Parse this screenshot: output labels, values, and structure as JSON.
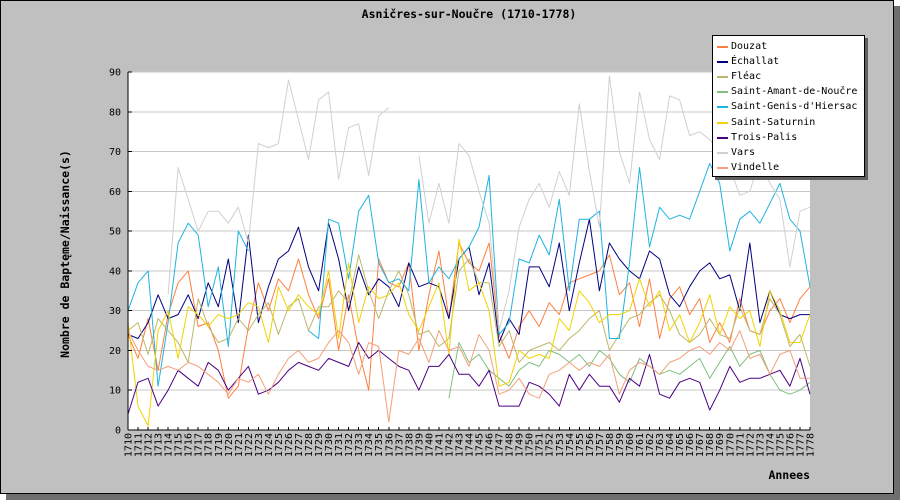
{
  "chart_data": {
    "type": "line",
    "title": "Asničres-sur-Noučre (1710-1778)",
    "xlabel": "Annees",
    "ylabel": "Nombre de Baptęme/Naissance(s)",
    "ylim": [
      0,
      90
    ],
    "yticks": [
      0,
      10,
      20,
      30,
      40,
      50,
      60,
      70,
      80,
      90
    ],
    "grid": "horizontal",
    "legend_position": "top-right",
    "x": [
      1710,
      1711,
      1712,
      1713,
      1714,
      1715,
      1716,
      1717,
      1718,
      1719,
      1720,
      1721,
      1722,
      1723,
      1724,
      1725,
      1726,
      1727,
      1728,
      1729,
      1730,
      1731,
      1732,
      1733,
      1734,
      1735,
      1736,
      1737,
      1738,
      1739,
      1740,
      1741,
      1742,
      1743,
      1744,
      1745,
      1746,
      1747,
      1748,
      1749,
      1750,
      1751,
      1752,
      1753,
      1754,
      1755,
      1756,
      1757,
      1758,
      1759,
      1760,
      1761,
      1762,
      1763,
      1764,
      1765,
      1766,
      1767,
      1768,
      1769,
      1770,
      1771,
      1772,
      1773,
      1774,
      1775,
      1776,
      1777,
      1778
    ],
    "series": [
      {
        "name": "Douzat",
        "color": "#ff7f3f",
        "values": [
          24,
          18,
          28,
          15,
          29,
          37,
          40,
          26,
          27,
          20,
          8,
          11,
          26,
          37,
          30,
          38,
          35,
          43,
          34,
          28,
          38,
          20,
          34,
          20,
          10,
          43,
          37,
          36,
          42,
          20,
          34,
          45,
          28,
          47,
          42,
          40,
          47,
          24,
          18,
          26,
          30,
          26,
          32,
          29,
          37,
          38,
          39,
          40,
          44,
          34,
          37,
          26,
          38,
          23,
          33,
          36,
          29,
          33,
          22,
          27,
          22,
          33,
          25,
          24,
          30,
          33,
          27,
          33,
          36
        ]
      },
      {
        "name": "Échallat",
        "color": "#000080",
        "values": [
          24,
          23,
          27,
          34,
          28,
          29,
          34,
          28,
          37,
          31,
          43,
          27,
          49,
          27,
          36,
          43,
          45,
          51,
          41,
          35,
          52,
          43,
          30,
          41,
          34,
          38,
          36,
          31,
          42,
          36,
          37,
          36,
          28,
          43,
          46,
          34,
          42,
          22,
          28,
          24,
          41,
          41,
          36,
          47,
          30,
          42,
          53,
          35,
          47,
          43,
          40,
          38,
          45,
          43,
          34,
          31,
          36,
          40,
          42,
          38,
          39,
          30,
          47,
          27,
          35,
          29,
          28,
          29,
          29
        ]
      },
      {
        "name": "Fléac",
        "color": "#bdb76b",
        "values": [
          25,
          27,
          19,
          28,
          25,
          22,
          17,
          33,
          26,
          22,
          23,
          28,
          25,
          29,
          32,
          24,
          31,
          33,
          25,
          31,
          31,
          35,
          32,
          44,
          35,
          28,
          35,
          40,
          34,
          24,
          25,
          21,
          23,
          40,
          43,
          37,
          37,
          21,
          25,
          17,
          20,
          21,
          22,
          20,
          23,
          25,
          28,
          30,
          20,
          24,
          28,
          29,
          32,
          34,
          30,
          24,
          22,
          24,
          28,
          24,
          23,
          31,
          25,
          24,
          33,
          29,
          21,
          24,
          16
        ]
      },
      {
        "name": "Saint-Amant-de-Noučre",
        "color": "#80c080",
        "values": [
          null,
          null,
          null,
          null,
          null,
          null,
          null,
          null,
          null,
          null,
          null,
          null,
          null,
          null,
          null,
          null,
          null,
          null,
          null,
          null,
          null,
          null,
          null,
          null,
          null,
          null,
          null,
          null,
          null,
          null,
          null,
          null,
          8,
          22,
          17,
          19,
          15,
          13,
          11,
          15,
          17,
          16,
          20,
          19,
          17,
          19,
          16,
          20,
          18,
          14,
          12,
          18,
          16,
          14,
          15,
          14,
          16,
          18,
          13,
          17,
          21,
          16,
          19,
          20,
          14,
          10,
          9,
          10,
          12
        ]
      },
      {
        "name": "Saint-Genis-d'Hiersac",
        "color": "#1fb3e0",
        "values": [
          30,
          37,
          40,
          11,
          27,
          47,
          52,
          49,
          31,
          41,
          21,
          50,
          45,
          null,
          null,
          null,
          null,
          null,
          25,
          23,
          53,
          52,
          38,
          55,
          59,
          42,
          37,
          38,
          35,
          63,
          37,
          41,
          38,
          43,
          46,
          51,
          64,
          24,
          27,
          43,
          42,
          49,
          44,
          58,
          35,
          53,
          53,
          55,
          23,
          23,
          42,
          66,
          46,
          56,
          53,
          54,
          53,
          60,
          67,
          62,
          45,
          53,
          55,
          52,
          57,
          62,
          53,
          50,
          36
        ]
      },
      {
        "name": "Saint-Saturnin",
        "color": "#f2d300",
        "values": [
          27,
          6,
          1,
          25,
          30,
          18,
          31,
          29,
          26,
          29,
          28,
          29,
          32,
          31,
          22,
          36,
          30,
          34,
          31,
          29,
          40,
          23,
          42,
          27,
          36,
          33,
          34,
          37,
          29,
          25,
          31,
          37,
          19,
          48,
          35,
          37,
          30,
          11,
          12,
          20,
          18,
          19,
          18,
          28,
          25,
          35,
          32,
          27,
          29,
          29,
          30,
          38,
          31,
          35,
          25,
          29,
          22,
          27,
          34,
          24,
          31,
          28,
          30,
          21,
          35,
          30,
          22,
          22,
          29
        ]
      },
      {
        "name": "Trois-Palis",
        "color": "#4b0082",
        "values": [
          4,
          12,
          13,
          6,
          10,
          15,
          13,
          11,
          17,
          15,
          10,
          13,
          16,
          9,
          10,
          12,
          15,
          17,
          16,
          15,
          18,
          17,
          16,
          22,
          18,
          20,
          18,
          16,
          15,
          10,
          16,
          16,
          19,
          14,
          14,
          11,
          15,
          6,
          6,
          6,
          12,
          11,
          9,
          6,
          14,
          10,
          14,
          11,
          11,
          7,
          13,
          11,
          19,
          9,
          8,
          12,
          13,
          12,
          5,
          10,
          16,
          12,
          13,
          13,
          14,
          15,
          11,
          18,
          9
        ]
      },
      {
        "name": "Vars",
        "color": "#d0d0d0",
        "values": [
          null,
          null,
          null,
          null,
          34,
          66,
          58,
          50,
          55,
          55,
          52,
          56,
          47,
          72,
          71,
          72,
          88,
          78,
          68,
          83,
          85,
          63,
          76,
          77,
          64,
          79,
          81,
          null,
          null,
          69,
          52,
          62,
          52,
          72,
          69,
          60,
          52,
          25,
          35,
          51,
          58,
          62,
          56,
          65,
          59,
          82,
          65,
          51,
          89,
          70,
          62,
          85,
          73,
          68,
          84,
          83,
          74,
          75,
          73,
          70,
          66,
          59,
          60,
          68,
          62,
          58,
          41,
          55,
          56
        ]
      },
      {
        "name": "Vindelle",
        "color": "#f4a07a",
        "values": [
          25,
          20,
          16,
          15,
          16,
          15,
          17,
          16,
          14,
          12,
          9,
          13,
          12,
          14,
          9,
          14,
          18,
          20,
          17,
          18,
          22,
          25,
          22,
          14,
          22,
          21,
          2,
          20,
          19,
          23,
          17,
          25,
          20,
          21,
          16,
          24,
          20,
          9,
          10,
          13,
          9,
          8,
          14,
          15,
          17,
          15,
          17,
          16,
          19,
          9,
          15,
          17,
          16,
          14,
          17,
          18,
          20,
          21,
          19,
          22,
          20,
          25,
          18,
          19,
          14,
          19,
          20,
          13,
          13
        ]
      }
    ]
  }
}
